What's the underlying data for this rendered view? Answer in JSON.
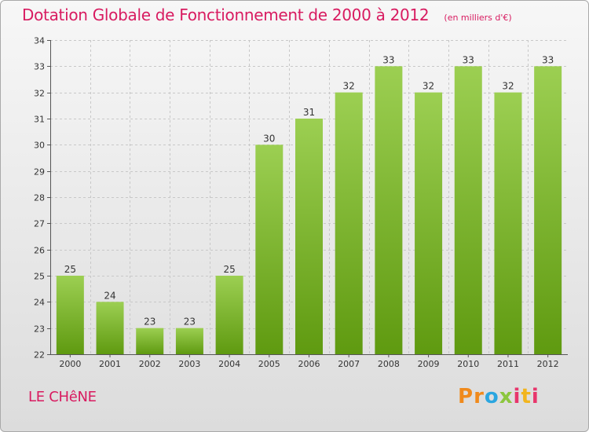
{
  "header": {
    "title": "Dotation Globale de Fonctionnement de 2000 à 2012",
    "unit": "(en milliers d'€)"
  },
  "footer": {
    "commune": "LE CHêNE",
    "logo_text": "Proxiti"
  },
  "colors": {
    "bar_top": "#9ccf52",
    "bar_bottom": "#5f9a10",
    "title": "#d81b60",
    "grid": "#c8c8c8"
  },
  "chart_data": {
    "type": "bar",
    "title": "Dotation Globale de Fonctionnement de 2000 à 2012",
    "subtitle": "(en milliers d'€)",
    "categories": [
      "2000",
      "2001",
      "2002",
      "2003",
      "2004",
      "2005",
      "2006",
      "2007",
      "2008",
      "2009",
      "2010",
      "2011",
      "2012"
    ],
    "values": [
      25,
      24,
      23,
      23,
      25,
      30,
      31,
      32,
      33,
      32,
      33,
      32,
      33
    ],
    "data_labels": [
      "25",
      "24",
      "23",
      "23",
      "25",
      "30",
      "31",
      "32",
      "33",
      "32",
      "33",
      "32",
      "33"
    ],
    "yticks": [
      22,
      23,
      24,
      25,
      26,
      27,
      28,
      29,
      30,
      31,
      32,
      33,
      34
    ],
    "ylim": [
      22,
      34
    ],
    "grid": true,
    "legend": "none"
  }
}
